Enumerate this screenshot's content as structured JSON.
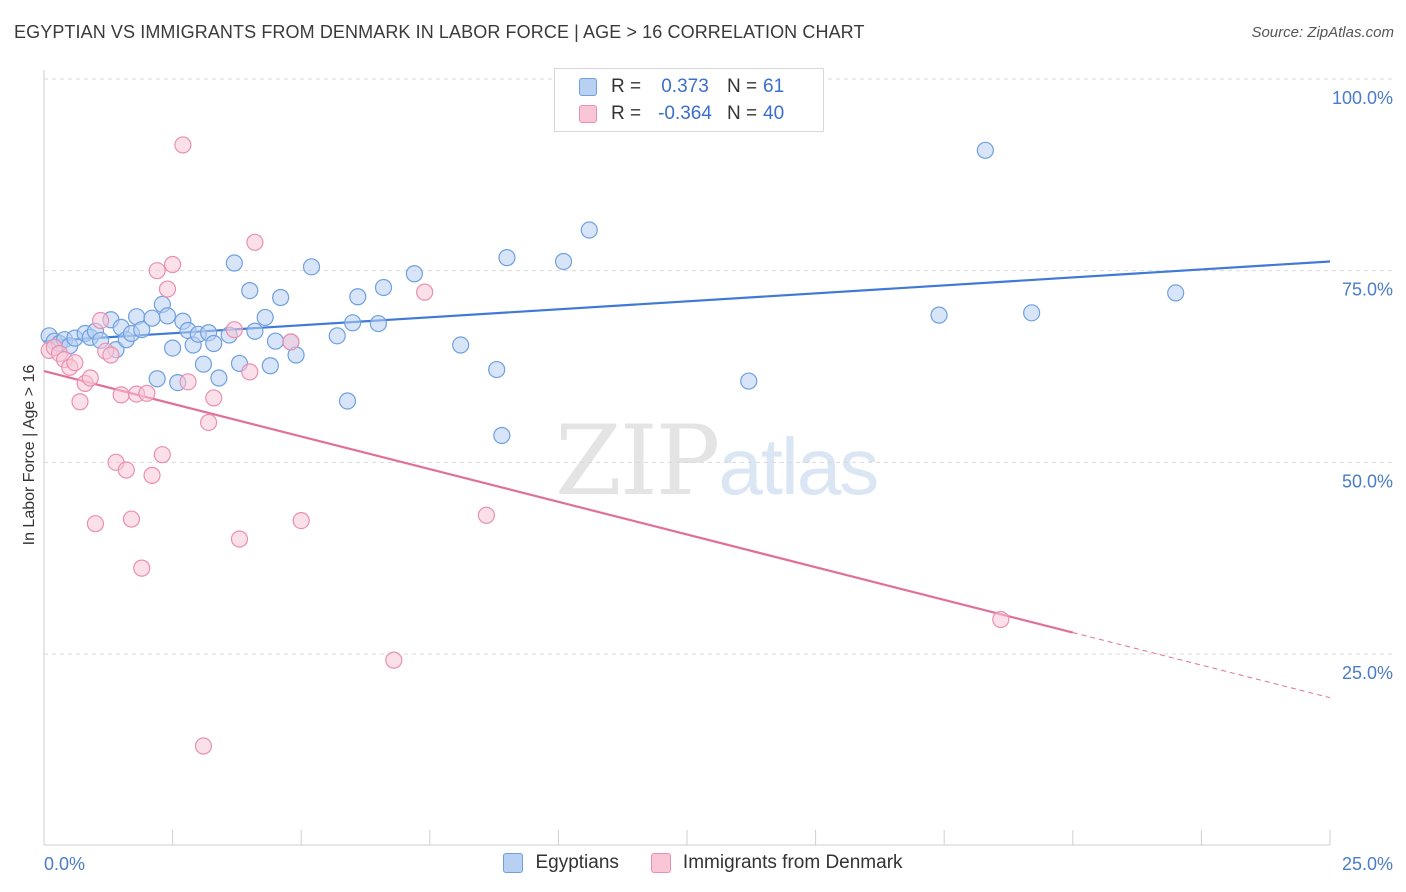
{
  "title": "EGYPTIAN VS IMMIGRANTS FROM DENMARK IN LABOR FORCE | AGE > 16 CORRELATION CHART",
  "source": "Source: ZipAtlas.com",
  "watermark": {
    "zip": "ZIP",
    "atlas": "atlas"
  },
  "legend": {
    "rows": [
      {
        "r_label": "R =",
        "r_value": "0.373",
        "n_label": "N =",
        "n_value": "61",
        "color": "#6fa0e0",
        "fill": "#b8d0f2"
      },
      {
        "r_label": "R =",
        "r_value": "-0.364",
        "n_label": "N =",
        "n_value": "40",
        "color": "#ea8fb0",
        "fill": "#f8c6d7"
      }
    ]
  },
  "bottom_legend": [
    {
      "label": "Egyptians",
      "color": "#6fa0e0",
      "fill": "#b8d0f2"
    },
    {
      "label": "Immigrants from Denmark",
      "color": "#ea8fb0",
      "fill": "#f8c6d7"
    }
  ],
  "chart_data": {
    "type": "scatter",
    "title": "EGYPTIAN VS IMMIGRANTS FROM DENMARK IN LABOR FORCE | AGE > 16 CORRELATION CHART",
    "xlabel": "",
    "ylabel": "In Labor Force | Age > 16",
    "xlim": [
      0,
      25
    ],
    "ylim": [
      3,
      105
    ],
    "x_tick_labels": [
      "0.0%",
      "25.0%"
    ],
    "y_ticks": [
      25,
      50,
      75,
      100
    ],
    "y_tick_labels": [
      "25.0%",
      "50.0%",
      "75.0%",
      "100.0%"
    ],
    "grid": "horizontal dashed",
    "legend_position": "top-center",
    "series": [
      {
        "name": "Egyptians",
        "color": "#3f7ad6",
        "marker_fill": "#b8d0f2",
        "marker_stroke": "#6fa0e0",
        "trend": {
          "x": [
            0,
            25
          ],
          "y": [
            65.8,
            76.2
          ]
        },
        "points": [
          [
            0.1,
            66.5
          ],
          [
            0.2,
            65.8
          ],
          [
            0.3,
            65.5
          ],
          [
            0.4,
            66.0
          ],
          [
            0.5,
            65.2
          ],
          [
            0.6,
            66.2
          ],
          [
            0.8,
            66.8
          ],
          [
            0.9,
            66.3
          ],
          [
            1.0,
            67.1
          ],
          [
            1.1,
            65.9
          ],
          [
            1.3,
            68.6
          ],
          [
            1.4,
            64.7
          ],
          [
            1.5,
            67.6
          ],
          [
            1.6,
            66.0
          ],
          [
            1.7,
            66.8
          ],
          [
            1.8,
            69.0
          ],
          [
            1.9,
            67.3
          ],
          [
            2.1,
            68.8
          ],
          [
            2.2,
            60.9
          ],
          [
            2.3,
            70.6
          ],
          [
            2.4,
            69.1
          ],
          [
            2.5,
            64.9
          ],
          [
            2.6,
            60.4
          ],
          [
            2.7,
            68.4
          ],
          [
            2.8,
            67.2
          ],
          [
            2.9,
            65.3
          ],
          [
            3.0,
            66.7
          ],
          [
            3.1,
            62.8
          ],
          [
            3.2,
            66.9
          ],
          [
            3.3,
            65.5
          ],
          [
            3.4,
            61.0
          ],
          [
            3.6,
            66.6
          ],
          [
            3.7,
            76.0
          ],
          [
            3.8,
            62.9
          ],
          [
            4.0,
            72.4
          ],
          [
            4.1,
            67.1
          ],
          [
            4.3,
            68.9
          ],
          [
            4.4,
            62.6
          ],
          [
            4.5,
            65.8
          ],
          [
            4.6,
            71.5
          ],
          [
            4.8,
            65.7
          ],
          [
            4.9,
            64.0
          ],
          [
            5.2,
            75.5
          ],
          [
            5.7,
            66.5
          ],
          [
            5.9,
            58.0
          ],
          [
            6.0,
            68.2
          ],
          [
            6.1,
            71.6
          ],
          [
            6.5,
            68.1
          ],
          [
            6.6,
            72.8
          ],
          [
            7.2,
            74.6
          ],
          [
            8.1,
            65.3
          ],
          [
            8.8,
            62.1
          ],
          [
            8.9,
            53.5
          ],
          [
            9.0,
            76.7
          ],
          [
            10.1,
            76.2
          ],
          [
            10.6,
            80.3
          ],
          [
            13.7,
            60.6
          ],
          [
            17.4,
            69.2
          ],
          [
            18.3,
            90.7
          ],
          [
            19.2,
            69.5
          ],
          [
            22.0,
            72.1
          ]
        ]
      },
      {
        "name": "Immigrants from Denmark",
        "color": "#e0709a",
        "marker_fill": "#f8c6d7",
        "marker_stroke": "#ea8fb0",
        "trend": {
          "x": [
            0,
            20.0
          ],
          "y": [
            61.9,
            27.8
          ]
        },
        "trend_extension": {
          "x": [
            20.0,
            25
          ],
          "y": [
            27.8,
            19.3
          ]
        },
        "points": [
          [
            0.1,
            64.6
          ],
          [
            0.2,
            65.0
          ],
          [
            0.3,
            64.2
          ],
          [
            0.4,
            63.4
          ],
          [
            0.5,
            62.4
          ],
          [
            0.6,
            63.0
          ],
          [
            0.7,
            57.9
          ],
          [
            0.8,
            60.3
          ],
          [
            0.9,
            61.0
          ],
          [
            1.0,
            42.0
          ],
          [
            1.1,
            68.5
          ],
          [
            1.2,
            64.5
          ],
          [
            1.3,
            64.0
          ],
          [
            1.4,
            50.0
          ],
          [
            1.5,
            58.8
          ],
          [
            1.6,
            49.0
          ],
          [
            1.7,
            42.6
          ],
          [
            1.8,
            58.9
          ],
          [
            1.9,
            36.2
          ],
          [
            2.0,
            59.0
          ],
          [
            2.1,
            48.3
          ],
          [
            2.2,
            75.0
          ],
          [
            2.3,
            51.0
          ],
          [
            2.4,
            72.6
          ],
          [
            2.5,
            75.8
          ],
          [
            2.7,
            91.4
          ],
          [
            2.8,
            60.5
          ],
          [
            3.1,
            13.0
          ],
          [
            3.2,
            55.2
          ],
          [
            3.3,
            58.4
          ],
          [
            3.7,
            67.3
          ],
          [
            3.8,
            40.0
          ],
          [
            4.0,
            61.8
          ],
          [
            4.1,
            78.7
          ],
          [
            4.8,
            65.7
          ],
          [
            5.0,
            42.4
          ],
          [
            6.8,
            24.2
          ],
          [
            7.4,
            72.2
          ],
          [
            8.6,
            43.1
          ],
          [
            18.6,
            29.5
          ]
        ]
      }
    ]
  }
}
